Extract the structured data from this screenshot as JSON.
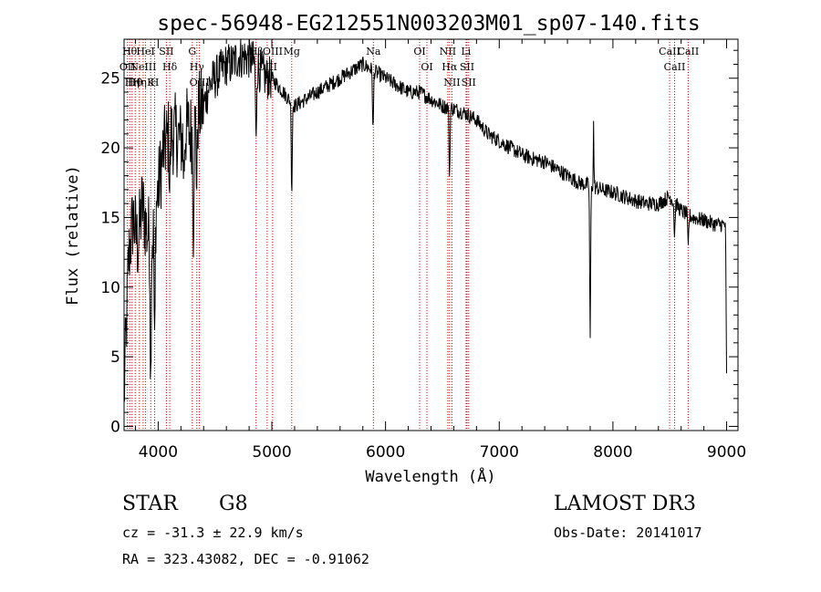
{
  "chart_data": {
    "type": "line",
    "title": "spec-56948-EG212551N003203M01_sp07-140.fits",
    "xlabel": "Wavelength (Å)",
    "ylabel": "Flux (relative)",
    "xlim": [
      3700,
      9100
    ],
    "ylim": [
      -0.3,
      27.8
    ],
    "xticks": [
      4000,
      5000,
      6000,
      7000,
      8000,
      9000
    ],
    "yticks": [
      0,
      5,
      10,
      15,
      20,
      25
    ],
    "spectrum_keypoints": [
      [
        3700,
        2.0
      ],
      [
        3740,
        12.0
      ],
      [
        3780,
        15.0
      ],
      [
        3820,
        13.0
      ],
      [
        3860,
        16.0
      ],
      [
        3900,
        14.0
      ],
      [
        3950,
        13.5
      ],
      [
        4000,
        17.0
      ],
      [
        4050,
        20.0
      ],
      [
        4100,
        21.0
      ],
      [
        4150,
        21.0
      ],
      [
        4200,
        20.5
      ],
      [
        4250,
        21.5
      ],
      [
        4300,
        21.0
      ],
      [
        4350,
        22.5
      ],
      [
        4400,
        23.0
      ],
      [
        4450,
        24.5
      ],
      [
        4500,
        25.0
      ],
      [
        4550,
        25.5
      ],
      [
        4600,
        26.0
      ],
      [
        4650,
        26.0
      ],
      [
        4700,
        26.5
      ],
      [
        4750,
        26.5
      ],
      [
        4800,
        26.5
      ],
      [
        4850,
        26.0
      ],
      [
        4900,
        25.5
      ],
      [
        4950,
        25.0
      ],
      [
        5000,
        25.0
      ],
      [
        5050,
        24.5
      ],
      [
        5100,
        24.0
      ],
      [
        5200,
        23.0
      ],
      [
        5300,
        23.5
      ],
      [
        5400,
        24.0
      ],
      [
        5500,
        24.5
      ],
      [
        5600,
        25.0
      ],
      [
        5700,
        25.5
      ],
      [
        5800,
        26.0
      ],
      [
        5900,
        25.5
      ],
      [
        6000,
        25.0
      ],
      [
        6100,
        24.5
      ],
      [
        6200,
        24.0
      ],
      [
        6300,
        24.0
      ],
      [
        6400,
        23.5
      ],
      [
        6500,
        23.0
      ],
      [
        6600,
        22.8
      ],
      [
        6700,
        22.5
      ],
      [
        6800,
        22.0
      ],
      [
        6900,
        21.0
      ],
      [
        7000,
        20.5
      ],
      [
        7100,
        20.0
      ],
      [
        7200,
        19.5
      ],
      [
        7300,
        19.2
      ],
      [
        7400,
        19.0
      ],
      [
        7500,
        18.5
      ],
      [
        7600,
        18.0
      ],
      [
        7700,
        17.5
      ],
      [
        7800,
        17.3
      ],
      [
        7900,
        17.0
      ],
      [
        8000,
        16.8
      ],
      [
        8100,
        16.5
      ],
      [
        8200,
        16.2
      ],
      [
        8300,
        16.0
      ],
      [
        8400,
        16.0
      ],
      [
        8500,
        16.5
      ],
      [
        8600,
        15.5
      ],
      [
        8700,
        15.0
      ],
      [
        8800,
        14.8
      ],
      [
        8900,
        14.5
      ],
      [
        9000,
        14.5
      ]
    ],
    "absorption_features": [
      {
        "x": 3934,
        "depth": 10.5
      },
      {
        "x": 3969,
        "depth": 10.0
      },
      {
        "x": 4102,
        "depth": 4.0
      },
      {
        "x": 4226,
        "depth": 3.0
      },
      {
        "x": 4310,
        "depth": 7.0
      },
      {
        "x": 4340,
        "depth": 5.0
      },
      {
        "x": 4861,
        "depth": 6.0
      },
      {
        "x": 5175,
        "depth": 6.5
      },
      {
        "x": 5890,
        "depth": 4.5
      },
      {
        "x": 6563,
        "depth": 5.0
      },
      {
        "x": 7800,
        "depth": 11.0
      },
      {
        "x": 8542,
        "depth": 2.5
      },
      {
        "x": 8662,
        "depth": 2.5
      },
      {
        "x": 9000,
        "depth": 11.0
      }
    ],
    "emission_spikes": [
      {
        "x": 7830,
        "height": 4.5
      }
    ],
    "line_markers": [
      {
        "x": 3750,
        "label": "Hθ"
      },
      {
        "x": 3730,
        "label": "OII"
      },
      {
        "x": 3771,
        "label": "Hη"
      },
      {
        "x": 3798,
        "label": "Hθ"
      },
      {
        "x": 3835,
        "label": "Hη"
      },
      {
        "x": 3868,
        "label": "NeIII"
      },
      {
        "x": 3889,
        "label": "HeI"
      },
      {
        "x": 3934,
        "label": "K"
      },
      {
        "x": 3969,
        "label": "H"
      },
      {
        "x": 4072,
        "label": "SII"
      },
      {
        "x": 4102,
        "label": "Hδ"
      },
      {
        "x": 4300,
        "label": "G"
      },
      {
        "x": 4340,
        "label": "Hγ"
      },
      {
        "x": 4363,
        "label": "OIII"
      },
      {
        "x": 4861,
        "label": "Hβ"
      },
      {
        "x": 4959,
        "label": "OIII"
      },
      {
        "x": 5007,
        "label": "OIII"
      },
      {
        "x": 5175,
        "label": "Mg"
      },
      {
        "x": 5893,
        "label": "Na"
      },
      {
        "x": 6300,
        "label": "OI"
      },
      {
        "x": 6364,
        "label": "OI"
      },
      {
        "x": 6548,
        "label": "NII"
      },
      {
        "x": 6563,
        "label": "Hα"
      },
      {
        "x": 6584,
        "label": "NII"
      },
      {
        "x": 6708,
        "label": "Li"
      },
      {
        "x": 6717,
        "label": "SII"
      },
      {
        "x": 6731,
        "label": "SII"
      },
      {
        "x": 8498,
        "label": "CaII"
      },
      {
        "x": 8542,
        "label": "CaII"
      },
      {
        "x": 8662,
        "label": "CaII"
      }
    ],
    "line_color": "#000000",
    "marker_color": "#cc0000"
  },
  "info": {
    "class_label": "STAR",
    "subclass": "G8",
    "survey": "LAMOST DR3",
    "cz": "cz = -31.3 ± 22.9 km/s",
    "obs_date": "Obs-Date: 20141017",
    "radec": "RA = 323.43082, DEC =  -0.91062"
  }
}
